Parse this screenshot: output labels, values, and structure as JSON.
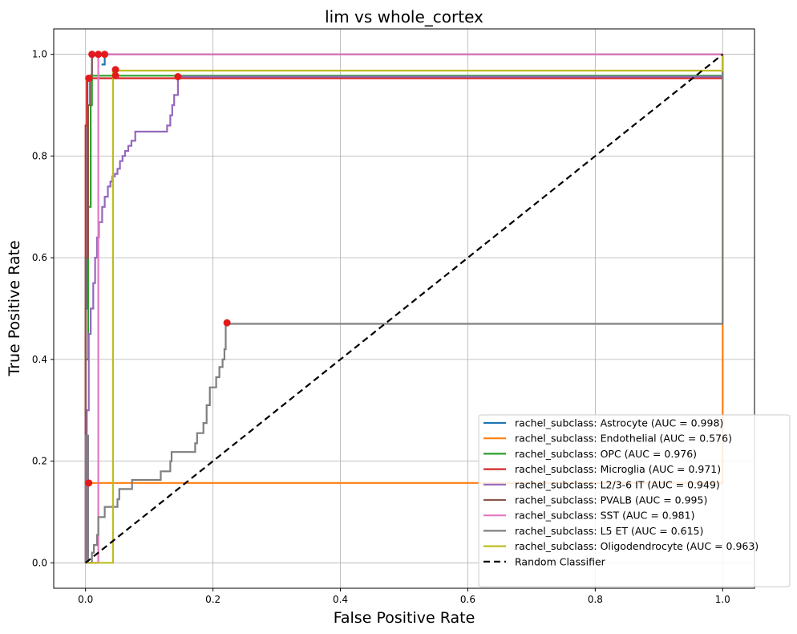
{
  "chart_data": {
    "type": "line",
    "title": "lim vs whole_cortex",
    "xlabel": "False Positive Rate",
    "ylabel": "True Positive Rate",
    "xlim": [
      -0.05,
      1.05
    ],
    "ylim": [
      -0.05,
      1.05
    ],
    "xticks": [
      "0.0",
      "0.2",
      "0.4",
      "0.6",
      "0.8",
      "1.0"
    ],
    "yticks": [
      "0.0",
      "0.2",
      "0.4",
      "0.6",
      "0.8",
      "1.0"
    ],
    "grid": true,
    "legend_position": "lower-right",
    "series": [
      {
        "name": "rachel_subclass: Astrocyte (AUC = 0.998)",
        "color": "#1f77b4",
        "points": [
          [
            0,
            0
          ],
          [
            0,
            0.5
          ],
          [
            0.003,
            0.5
          ],
          [
            0.003,
            0.95
          ],
          [
            0.01,
            0.95
          ],
          [
            0.01,
            1.0
          ],
          [
            0.015,
            1.0
          ],
          [
            0.02,
            1.0
          ],
          [
            0.03,
            1.0
          ],
          [
            0.03,
            0.98
          ],
          [
            0.025,
            0.98
          ],
          [
            0.03,
            0.98
          ],
          [
            0.03,
            1.0
          ],
          [
            1,
            1
          ]
        ],
        "optimal": [
          0.03,
          1.0
        ]
      },
      {
        "name": "rachel_subclass: Endothelial (AUC = 0.576)",
        "color": "#ff7f0e",
        "points": [
          [
            0,
            0
          ],
          [
            0,
            0.157
          ],
          [
            1,
            0.157
          ],
          [
            1,
            1
          ]
        ],
        "optimal": [
          0.005,
          0.157
        ]
      },
      {
        "name": "rachel_subclass: OPC (AUC = 0.976)",
        "color": "#2ca02c",
        "points": [
          [
            0,
            0
          ],
          [
            0,
            0.4
          ],
          [
            0.004,
            0.4
          ],
          [
            0.004,
            0.7
          ],
          [
            0.008,
            0.7
          ],
          [
            0.008,
            0.9
          ],
          [
            0.01,
            0.9
          ],
          [
            0.01,
            0.958
          ],
          [
            1,
            0.958
          ],
          [
            1,
            1
          ]
        ],
        "optimal": [
          0.047,
          0.958
        ]
      },
      {
        "name": "rachel_subclass: Microglia (AUC = 0.971)",
        "color": "#d62728",
        "points": [
          [
            0,
            0
          ],
          [
            0,
            0.86
          ],
          [
            0.002,
            0.86
          ],
          [
            0.002,
            0.95
          ],
          [
            0.005,
            0.95
          ],
          [
            0.005,
            0.953
          ],
          [
            1,
            0.953
          ],
          [
            1,
            1
          ]
        ],
        "optimal": [
          0.005,
          0.953
        ]
      },
      {
        "name": "rachel_subclass: L2/3-6 IT (AUC = 0.949)",
        "color": "#9467bd",
        "points": [
          [
            0,
            0
          ],
          [
            0.002,
            0
          ],
          [
            0.002,
            0.3
          ],
          [
            0.005,
            0.3
          ],
          [
            0.005,
            0.45
          ],
          [
            0.008,
            0.45
          ],
          [
            0.008,
            0.5
          ],
          [
            0.012,
            0.5
          ],
          [
            0.012,
            0.55
          ],
          [
            0.015,
            0.55
          ],
          [
            0.015,
            0.6
          ],
          [
            0.018,
            0.6
          ],
          [
            0.018,
            0.64
          ],
          [
            0.021,
            0.64
          ],
          [
            0.021,
            0.67
          ],
          [
            0.026,
            0.67
          ],
          [
            0.026,
            0.7
          ],
          [
            0.03,
            0.7
          ],
          [
            0.03,
            0.72
          ],
          [
            0.035,
            0.72
          ],
          [
            0.035,
            0.74
          ],
          [
            0.039,
            0.74
          ],
          [
            0.039,
            0.75
          ],
          [
            0.042,
            0.75
          ],
          [
            0.042,
            0.76
          ],
          [
            0.046,
            0.76
          ],
          [
            0.046,
            0.765
          ],
          [
            0.05,
            0.765
          ],
          [
            0.05,
            0.775
          ],
          [
            0.054,
            0.775
          ],
          [
            0.054,
            0.79
          ],
          [
            0.058,
            0.79
          ],
          [
            0.058,
            0.8
          ],
          [
            0.062,
            0.8
          ],
          [
            0.062,
            0.81
          ],
          [
            0.067,
            0.81
          ],
          [
            0.067,
            0.82
          ],
          [
            0.072,
            0.82
          ],
          [
            0.072,
            0.83
          ],
          [
            0.078,
            0.83
          ],
          [
            0.078,
            0.848
          ],
          [
            0.128,
            0.848
          ],
          [
            0.128,
            0.86
          ],
          [
            0.133,
            0.86
          ],
          [
            0.133,
            0.88
          ],
          [
            0.136,
            0.88
          ],
          [
            0.136,
            0.9
          ],
          [
            0.139,
            0.9
          ],
          [
            0.139,
            0.92
          ],
          [
            0.145,
            0.92
          ],
          [
            0.145,
            0.956
          ],
          [
            1,
            0.956
          ],
          [
            1,
            1
          ]
        ],
        "optimal": [
          0.145,
          0.956
        ]
      },
      {
        "name": "rachel_subclass: PVALB (AUC = 0.995)",
        "color": "#8c564b",
        "points": [
          [
            0,
            0
          ],
          [
            0,
            0.6
          ],
          [
            0.004,
            0.6
          ],
          [
            0.004,
            0.9
          ],
          [
            0.007,
            0.9
          ],
          [
            0.007,
            0.95
          ],
          [
            0.009,
            0.95
          ],
          [
            0.009,
            0.96
          ],
          [
            0.01,
            0.96
          ],
          [
            0.01,
            1.0
          ],
          [
            1,
            1.0
          ]
        ],
        "optimal": [
          0.01,
          1.0
        ]
      },
      {
        "name": "rachel_subclass: SST (AUC = 0.981)",
        "color": "#e377c2",
        "points": [
          [
            0,
            0
          ],
          [
            0.02,
            0
          ],
          [
            0.02,
            0.5
          ],
          [
            0.02,
            1.0
          ],
          [
            1,
            1.0
          ]
        ],
        "optimal": [
          0.02,
          1.0
        ]
      },
      {
        "name": "rachel_subclass: L5 ET (AUC = 0.615)",
        "color": "#7f7f7f",
        "points": [
          [
            0,
            0
          ],
          [
            0,
            0.25
          ],
          [
            0.004,
            0.25
          ],
          [
            0.004,
            0
          ],
          [
            0.01,
            0
          ],
          [
            0.01,
            0.02
          ],
          [
            0.013,
            0.02
          ],
          [
            0.013,
            0.035
          ],
          [
            0.018,
            0.035
          ],
          [
            0.018,
            0.055
          ],
          [
            0.02,
            0.055
          ],
          [
            0.02,
            0.09
          ],
          [
            0.03,
            0.09
          ],
          [
            0.03,
            0.11
          ],
          [
            0.05,
            0.11
          ],
          [
            0.05,
            0.125
          ],
          [
            0.053,
            0.125
          ],
          [
            0.053,
            0.145
          ],
          [
            0.073,
            0.145
          ],
          [
            0.073,
            0.163
          ],
          [
            0.118,
            0.163
          ],
          [
            0.118,
            0.18
          ],
          [
            0.133,
            0.18
          ],
          [
            0.133,
            0.2
          ],
          [
            0.135,
            0.2
          ],
          [
            0.135,
            0.218
          ],
          [
            0.172,
            0.218
          ],
          [
            0.172,
            0.235
          ],
          [
            0.175,
            0.235
          ],
          [
            0.175,
            0.255
          ],
          [
            0.185,
            0.255
          ],
          [
            0.185,
            0.275
          ],
          [
            0.19,
            0.275
          ],
          [
            0.19,
            0.31
          ],
          [
            0.195,
            0.31
          ],
          [
            0.195,
            0.345
          ],
          [
            0.205,
            0.345
          ],
          [
            0.205,
            0.365
          ],
          [
            0.21,
            0.365
          ],
          [
            0.21,
            0.385
          ],
          [
            0.215,
            0.385
          ],
          [
            0.215,
            0.4
          ],
          [
            0.218,
            0.4
          ],
          [
            0.218,
            0.42
          ],
          [
            0.22,
            0.42
          ],
          [
            0.22,
            0.47
          ],
          [
            1,
            0.47
          ],
          [
            1,
            1
          ]
        ],
        "optimal": [
          0.222,
          0.472
        ]
      },
      {
        "name": "rachel_subclass: Oligodendrocyte (AUC = 0.963)",
        "color": "#bcbd22",
        "points": [
          [
            0,
            0
          ],
          [
            0.043,
            0
          ],
          [
            0.043,
            0.968
          ],
          [
            1,
            0.968
          ],
          [
            1,
            1
          ]
        ],
        "optimal": [
          0.047,
          0.97
        ]
      },
      {
        "name": "Random Classifier",
        "color": "#000000",
        "dashed": true,
        "points": [
          [
            0,
            0
          ],
          [
            1,
            1
          ]
        ]
      }
    ]
  }
}
